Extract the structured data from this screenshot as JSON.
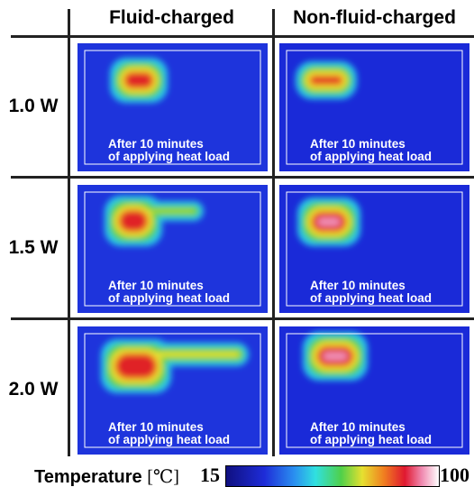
{
  "column_headers": [
    "Fluid-charged",
    "Non-fluid-charged"
  ],
  "rows": [
    {
      "label": "1.0 W",
      "cells": [
        {
          "caption": [
            "After 10 minutes",
            "of applying heat load"
          ]
        },
        {
          "caption": [
            "After 10 minutes",
            "of applying heat load"
          ]
        }
      ]
    },
    {
      "label": "1.5 W",
      "cells": [
        {
          "caption": [
            "After 10 minutes",
            "of applying heat load"
          ]
        },
        {
          "caption": [
            "After 10 minutes",
            "of applying heat load"
          ]
        }
      ]
    },
    {
      "label": "2.0 W",
      "cells": [
        {
          "caption": [
            "After 10 minutes",
            "of applying heat load"
          ]
        },
        {
          "caption": [
            "After 10 minutes",
            "of applying heat load"
          ]
        }
      ]
    }
  ],
  "colorbar": {
    "label": "Temperature",
    "unit": "[℃]",
    "min": 15,
    "max": 100
  }
}
